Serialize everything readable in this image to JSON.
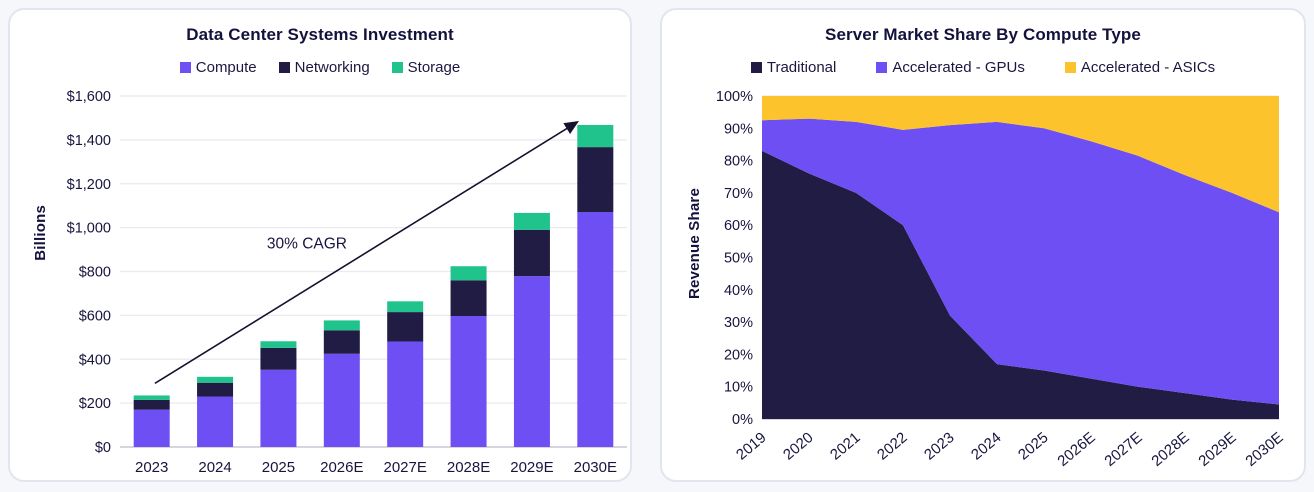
{
  "page_background": "#F6F7FA",
  "colors": {
    "purple": "#6E4FF3",
    "navy": "#211C44",
    "green": "#1FC38B",
    "yellow": "#FCC32D",
    "text_dark": "#17153E",
    "grid_line": "#EAEAF1",
    "axis_line": "#C7C9D3",
    "arrow": "#14122E",
    "card_border": "#E3E5EE"
  },
  "chart_data": [
    {
      "type": "bar",
      "stacked": true,
      "title": "Data Center Systems Investment",
      "ylabel": "Billions",
      "categories": [
        "2023",
        "2024",
        "2025",
        "2026E",
        "2027E",
        "2028E",
        "2029E",
        "2030E"
      ],
      "series": [
        {
          "name": "Compute",
          "color_key": "purple",
          "values": [
            170,
            230,
            352,
            425,
            481,
            597,
            779,
            1071
          ]
        },
        {
          "name": "Networking",
          "color_key": "navy",
          "values": [
            45,
            63,
            100,
            107,
            134,
            163,
            211,
            296
          ]
        },
        {
          "name": "Storage",
          "color_key": "green",
          "values": [
            20,
            27,
            30,
            45,
            49,
            64,
            77,
            101
          ]
        }
      ],
      "totals": [
        235,
        320,
        482,
        577,
        664,
        824,
        1067,
        1468
      ],
      "ylim": [
        0,
        1600
      ],
      "ytick_step": 200,
      "ytick_labels": [
        "$0",
        "$200",
        "$400",
        "$600",
        "$800",
        "$1,000",
        "$1,200",
        "$1,400",
        "$1,600"
      ],
      "grid": true,
      "legend_position": "top",
      "annotation": {
        "text": "30% CAGR",
        "arrow_from": {
          "slot": 0.05,
          "value": 290
        },
        "arrow_to": {
          "slot": 6.72,
          "value": 1482
        },
        "label_at": {
          "slot": 2.45,
          "value": 905
        }
      }
    },
    {
      "type": "area",
      "stacked": true,
      "title": "Server Market Share By Compute Type",
      "ylabel": "Revenue Share",
      "x": [
        "2019",
        "2020",
        "2021",
        "2022",
        "2023",
        "2024",
        "2025",
        "2026E",
        "2027E",
        "2028E",
        "2029E",
        "2030E"
      ],
      "series": [
        {
          "name": "Traditional",
          "color_key": "navy",
          "values": [
            83,
            76,
            70,
            60,
            32,
            17,
            15,
            12.5,
            10,
            8,
            6,
            4.5
          ]
        },
        {
          "name": "Accelerated - GPUs",
          "color_key": "purple",
          "values": [
            9.5,
            17,
            22,
            29.5,
            59,
            75,
            75,
            73.5,
            71.5,
            67.5,
            64,
            59.5
          ]
        },
        {
          "name": "Accelerated - ASICs",
          "color_key": "yellow",
          "values": [
            7.5,
            7,
            8,
            10.5,
            9,
            8,
            10,
            14,
            18.5,
            24.5,
            30,
            36
          ]
        }
      ],
      "ylim": [
        0,
        100
      ],
      "ytick_step": 10,
      "ytick_labels": [
        "0%",
        "10%",
        "20%",
        "30%",
        "40%",
        "50%",
        "60%",
        "70%",
        "80%",
        "90%",
        "100%"
      ],
      "grid": true,
      "legend_position": "top"
    }
  ]
}
